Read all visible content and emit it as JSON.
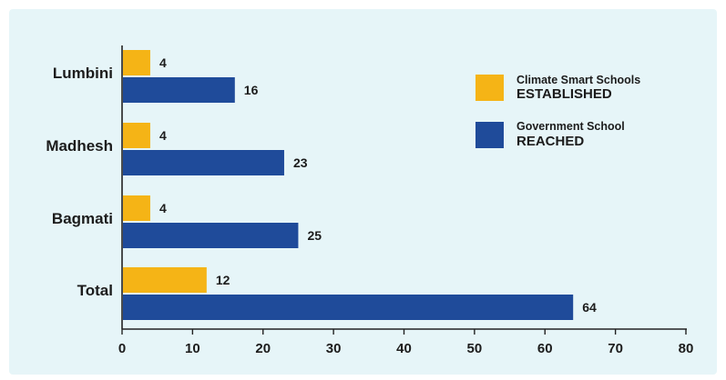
{
  "chart_data": {
    "type": "bar",
    "orientation": "horizontal",
    "categories": [
      "Lumbini",
      "Madhesh",
      "Bagmati",
      "Total"
    ],
    "series": [
      {
        "legend_line1": "Climate Smart Schools",
        "legend_line2": "ESTABLISHED",
        "color": "#f5b416",
        "values": [
          4,
          4,
          4,
          12
        ],
        "value_labels": [
          "4",
          "4",
          "4",
          "12"
        ]
      },
      {
        "legend_line1": "Government School",
        "legend_line2": "REACHED",
        "color": "#1f4b9a",
        "values": [
          16,
          23,
          25,
          64
        ],
        "value_labels": [
          "16",
          "23",
          "25",
          "64"
        ]
      }
    ],
    "xlim": [
      0,
      80
    ],
    "xticks": [
      "0",
      "10",
      "20",
      "30",
      "40",
      "50",
      "60",
      "70",
      "80"
    ],
    "grid": false,
    "legend_position": "top-right",
    "colors": {
      "panel": "#e6f5f8",
      "axis": "#222222",
      "text": "#1c1c1c"
    }
  }
}
